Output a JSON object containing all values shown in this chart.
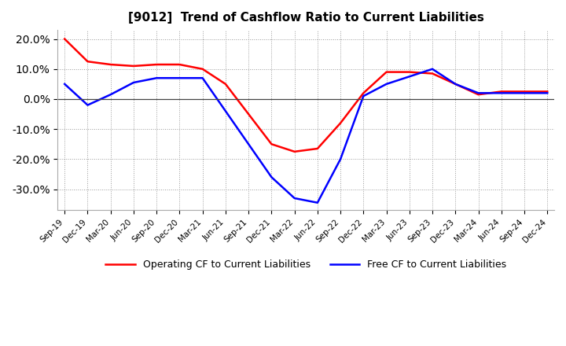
{
  "title": "[9012]  Trend of Cashflow Ratio to Current Liabilities",
  "x_labels": [
    "Sep-19",
    "Dec-19",
    "Mar-20",
    "Jun-20",
    "Sep-20",
    "Dec-20",
    "Mar-21",
    "Jun-21",
    "Sep-21",
    "Dec-21",
    "Mar-22",
    "Jun-22",
    "Sep-22",
    "Dec-22",
    "Mar-23",
    "Jun-23",
    "Sep-23",
    "Dec-23",
    "Mar-24",
    "Jun-24",
    "Sep-24",
    "Dec-24"
  ],
  "operating_cf": [
    20.0,
    12.5,
    11.5,
    11.0,
    11.5,
    11.5,
    10.0,
    5.0,
    -5.0,
    -15.0,
    -17.5,
    -16.5,
    -8.0,
    2.0,
    9.0,
    9.0,
    8.5,
    5.0,
    1.5,
    2.5,
    2.5,
    2.5
  ],
  "free_cf": [
    5.0,
    -2.0,
    1.5,
    5.5,
    7.0,
    7.0,
    7.0,
    -4.0,
    -15.0,
    -26.0,
    -33.0,
    -34.5,
    -20.0,
    1.0,
    5.0,
    7.5,
    10.0,
    5.0,
    2.0,
    2.0,
    2.0,
    2.0
  ],
  "operating_color": "#ff0000",
  "free_color": "#0000ff",
  "ylim": [
    -37,
    23
  ],
  "yticks": [
    -30.0,
    -20.0,
    -10.0,
    0.0,
    10.0,
    20.0
  ],
  "background_color": "#ffffff",
  "grid_color": "#999999",
  "legend_op": "Operating CF to Current Liabilities",
  "legend_free": "Free CF to Current Liabilities"
}
